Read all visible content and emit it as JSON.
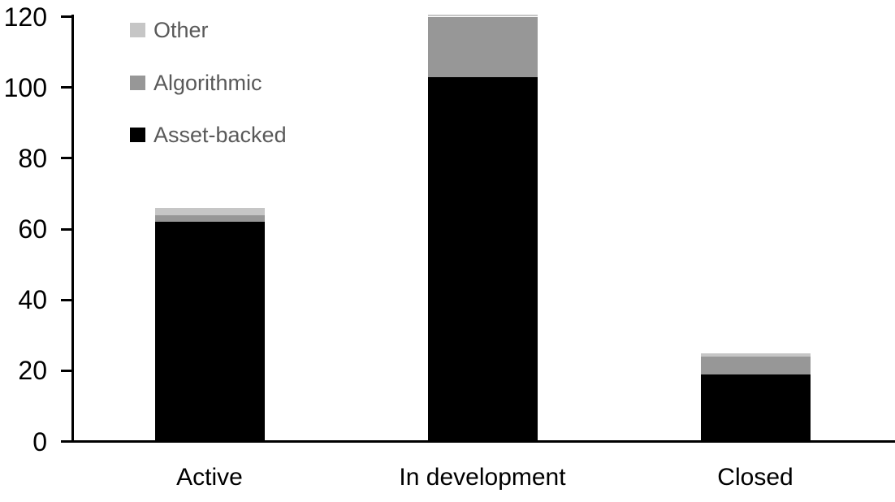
{
  "chart_data": {
    "type": "bar",
    "stacked": true,
    "title": "",
    "xlabel": "",
    "ylabel": "",
    "categories": [
      "Active",
      "In development",
      "Closed"
    ],
    "series": [
      {
        "name": "Asset-backed",
        "color": "#000000",
        "values": [
          62,
          103,
          19
        ]
      },
      {
        "name": "Algorithmic",
        "color": "#979797",
        "values": [
          2,
          17,
          5
        ]
      },
      {
        "name": "Other",
        "color": "#c6c6c6",
        "values": [
          2,
          0.5,
          1
        ]
      }
    ],
    "approx_totals": [
      66,
      120,
      25
    ],
    "ylim": [
      0,
      120
    ],
    "yticks": [
      0,
      20,
      40,
      60,
      80,
      100,
      120
    ],
    "grid": false,
    "legend": {
      "position": "top-left",
      "order_top_to_bottom": [
        "Other",
        "Algorithmic",
        "Asset-backed"
      ],
      "text_color": "#595959"
    },
    "colors": {
      "axis": "#000000",
      "background": "#ffffff",
      "tick_label": "#000000"
    }
  }
}
